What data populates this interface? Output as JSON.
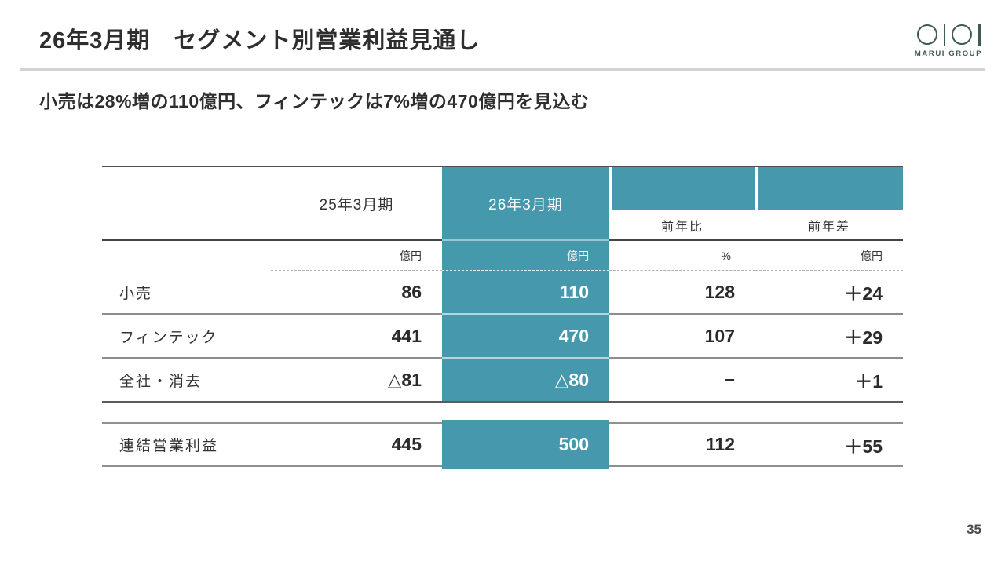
{
  "slide": {
    "title": "26年3月期　セグメント別営業利益見通し",
    "subtitle": "小売は28%増の110億円、フィンテックは7%増の470億円を見込む",
    "page_number": "35"
  },
  "logo": {
    "brand": "Marui Group",
    "color": "#3e5a54"
  },
  "colors": {
    "accent_teal": "#4698ad",
    "divider_gray": "#d2d2d2",
    "text_dark": "#2e2e2e"
  },
  "table": {
    "col_headers": {
      "fy25": "25年3月期",
      "fy26": "26年3月期",
      "yoy": "前年比",
      "diff": "前年差"
    },
    "units": {
      "fy25": "億円",
      "fy26": "億円",
      "yoy": "%",
      "diff": "億円"
    },
    "rows": [
      {
        "label": "小売",
        "fy25": "86",
        "fy26": "110",
        "yoy": "128",
        "diff": "＋24"
      },
      {
        "label": "フィンテック",
        "fy25": "441",
        "fy26": "470",
        "yoy": "107",
        "diff": "＋29"
      },
      {
        "label": "全社・消去",
        "fy25": "△81",
        "fy26": "△80",
        "yoy": "−",
        "diff": "＋1"
      }
    ],
    "total": {
      "label": "連結営業利益",
      "fy25": "445",
      "fy26": "500",
      "yoy": "112",
      "diff": "＋55"
    }
  }
}
